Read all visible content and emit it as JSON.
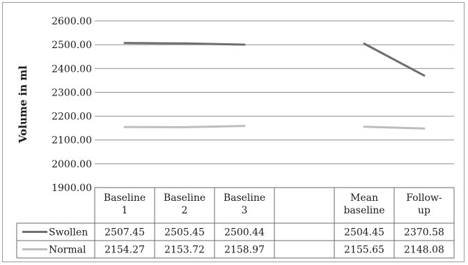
{
  "chart_data": {
    "type": "line",
    "title": "",
    "xlabel": "",
    "ylabel": "Volume in ml",
    "ylim": [
      1900,
      2600
    ],
    "y_ticks": [
      "2600.00",
      "2500.00",
      "2400.00",
      "2300.00",
      "2200.00",
      "2100.00",
      "2000.00",
      "1900.00"
    ],
    "categories": [
      {
        "lines": [
          "Baseline",
          "1"
        ]
      },
      {
        "lines": [
          "Baseline",
          "2"
        ]
      },
      {
        "lines": [
          "Baseline",
          "3"
        ]
      },
      {
        "lines": [
          "",
          ""
        ]
      },
      {
        "lines": [
          "Mean",
          "baseline"
        ]
      },
      {
        "lines": [
          "Follow-",
          "up"
        ]
      }
    ],
    "series": [
      {
        "name": "Swollen",
        "color": "#6e6e6e",
        "values": [
          2507.45,
          2505.45,
          2500.44,
          null,
          2504.45,
          2370.58
        ],
        "labels": [
          "2507.45",
          "2505.45",
          "2500.44",
          "",
          "2504.45",
          "2370.58"
        ]
      },
      {
        "name": "Normal",
        "color": "#bdbdbd",
        "values": [
          2154.27,
          2153.72,
          2158.97,
          null,
          2155.65,
          2148.08
        ],
        "labels": [
          "2154.27",
          "2153.72",
          "2158.97",
          "",
          "2155.65",
          "2148.08"
        ]
      }
    ],
    "grid": true,
    "legend": "data-table"
  }
}
